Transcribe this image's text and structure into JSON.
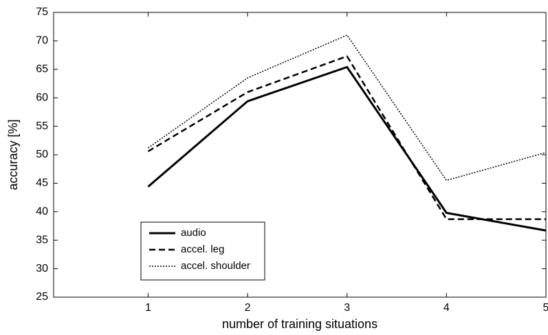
{
  "chart_data": {
    "type": "line",
    "xlabel": "number of training situations",
    "ylabel": "accuracy [%]",
    "x": [
      1,
      2,
      3,
      4,
      5
    ],
    "series": [
      {
        "name": "audio",
        "color": "#000000",
        "linestyle": "solid",
        "values": [
          44.4,
          59.4,
          65.4,
          39.8,
          36.7
        ]
      },
      {
        "name": "accel. leg",
        "color": "#000000",
        "linestyle": "dashed",
        "values": [
          50.6,
          61,
          67.3,
          38.7,
          38.7
        ]
      },
      {
        "name": "accel. shoulder",
        "color": "#000000",
        "linestyle": "dotted",
        "values": [
          51.2,
          63.5,
          71,
          45.5,
          50.4
        ]
      }
    ],
    "xlim": [
      0.05,
      5
    ],
    "xticks": [
      1,
      2,
      3,
      4,
      5
    ],
    "ylim": [
      25,
      75
    ],
    "yticks": [
      25,
      30,
      35,
      40,
      45,
      50,
      55,
      60,
      65,
      70,
      75
    ],
    "grid": false,
    "legend": "lower left"
  }
}
